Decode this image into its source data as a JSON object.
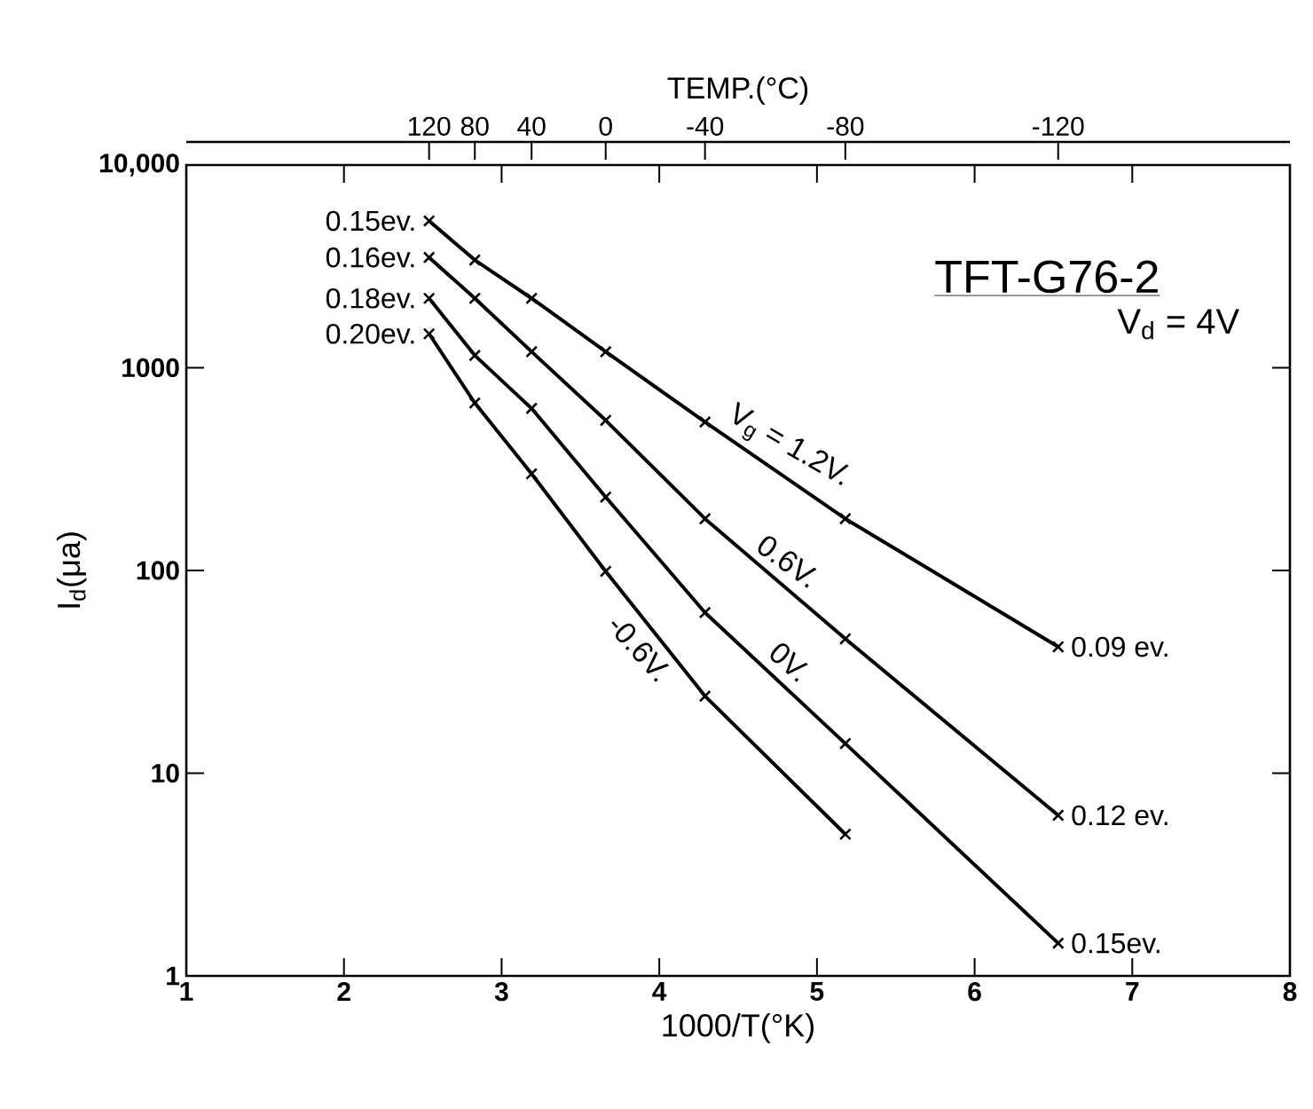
{
  "chart_data": {
    "type": "line",
    "title": "TFT-G76-2",
    "subtitle": "V$_{d}$ = 4V",
    "xlabel": "1000/T(°K)",
    "ylabel": "I$_{d}$(μa)",
    "x2label": "TEMP.(°C)",
    "x": [
      2.54,
      2.83,
      3.19,
      3.66,
      4.29,
      5.18,
      6.53
    ],
    "series": [
      {
        "name": "V$_{g}$ = 1.2V.",
        "color": "#000000",
        "values": [
          5300,
          3400,
          2200,
          1200,
          540,
          180,
          42
        ]
      },
      {
        "name": "0.6V.",
        "color": "#000000",
        "values": [
          3500,
          2200,
          1200,
          550,
          180,
          46,
          6.2
        ]
      },
      {
        "name": "0V.",
        "color": "#000000",
        "values": [
          2200,
          1150,
          630,
          230,
          62,
          14,
          1.45
        ]
      },
      {
        "name": "-0.6V.",
        "color": "#000000",
        "values": [
          1470,
          670,
          300,
          99,
          24,
          5,
          null
        ]
      }
    ],
    "xlim": [
      1,
      8
    ],
    "xticks": [
      1,
      2,
      3,
      4,
      5,
      6,
      7,
      8
    ],
    "ylim": [
      1,
      10000
    ],
    "yticks": [
      1,
      10,
      100,
      1000,
      {
        "value": 10000,
        "label": "10,000"
      }
    ],
    "log": "y",
    "marker": "cross",
    "line_style": "solid",
    "grid": false,
    "annotations": [
      "0.15ev.",
      "0.16ev.",
      "0.18ev.",
      "0.20ev.",
      "0.09 ev.",
      "0.12 ev.",
      "0.15ev.",
      "120",
      "80",
      "40",
      "0",
      "-40",
      "-80",
      "-120"
    ]
  }
}
